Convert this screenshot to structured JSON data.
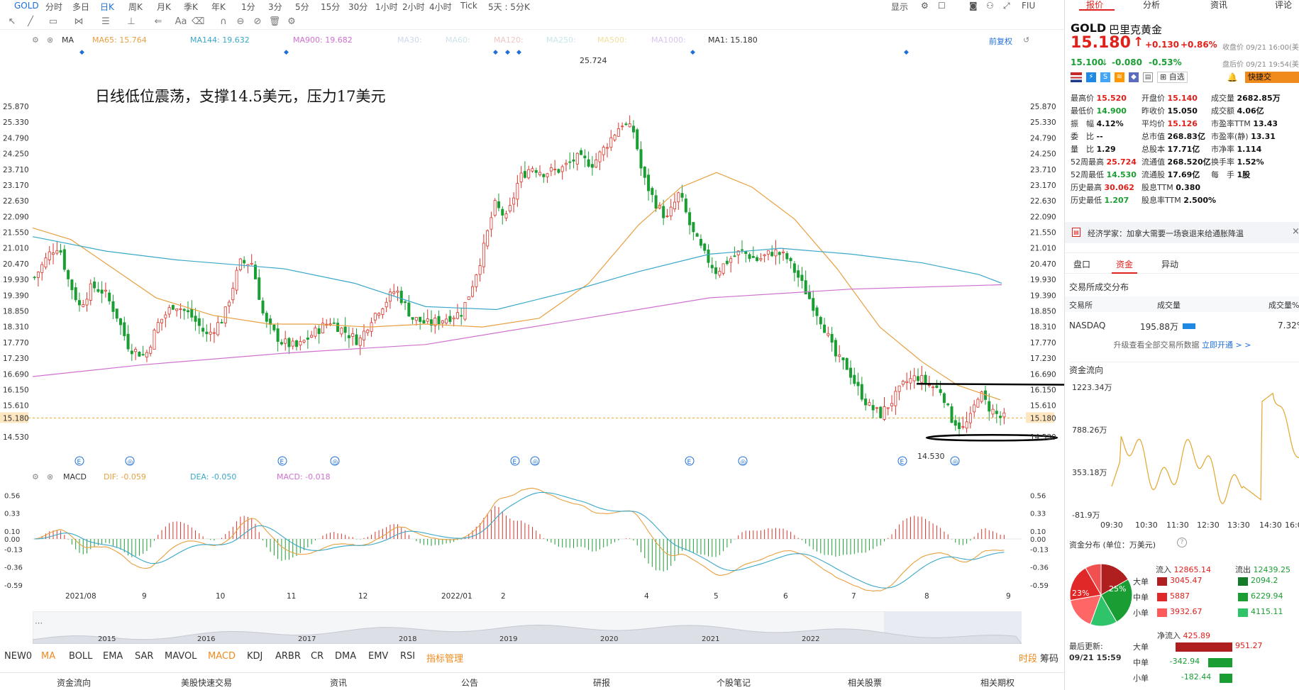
{
  "topbar": {
    "symbol": "GOLD",
    "periods": [
      "分时",
      "多日",
      "日K",
      "周K",
      "月K",
      "季K",
      "年K",
      "1分",
      "3分",
      "5分",
      "15分",
      "30分",
      "1小时",
      "2小时",
      "4小时",
      "Tick",
      "5天 : 5分K"
    ],
    "active_period": "日K",
    "display_label": "显示",
    "fu_label": "FIU"
  },
  "main_indicators": {
    "ma_label": "MA",
    "ma65": "MA65: 15.764",
    "ma144": "MA144: 19.632",
    "ma900": "MA900: 19.682",
    "ma30": "MA30:",
    "ma60": "MA60:",
    "ma120": "MA120:",
    "ma250": "MA250:",
    "ma500": "MA500:",
    "ma1000": "MA1000:",
    "ma1": "MA1: 15.180",
    "adjust": "前复权",
    "colors": {
      "ma65": "#e8a040",
      "ma144": "#3aa8c8",
      "ma900": "#d070d0",
      "ma1": "#333333"
    }
  },
  "annotation": "日线低位震荡，支撑14.5美元，压力17美元",
  "price_axis": [
    "25.870",
    "25.330",
    "24.790",
    "24.250",
    "23.710",
    "23.170",
    "22.630",
    "22.090",
    "21.550",
    "21.010",
    "20.470",
    "19.930",
    "19.390",
    "18.850",
    "18.310",
    "17.770",
    "17.230",
    "16.690",
    "16.150",
    "15.610",
    "15.180",
    "14.530"
  ],
  "current_price_tag": "15.180",
  "high_label": "25.724",
  "low_label": "14.530",
  "macd": {
    "label": "MACD",
    "dif": "DIF: -0.059",
    "dea": "DEA: -0.050",
    "macd": "MACD: -0.018",
    "axis": [
      "0.56",
      "0.33",
      "0.10",
      "0.00",
      "-0.13",
      "-0.36",
      "-0.59"
    ]
  },
  "time_axis": [
    "2021/08",
    "9",
    "10",
    "11",
    "12",
    "2022/01",
    "2",
    "4",
    "5",
    "6",
    "7",
    "8",
    "9"
  ],
  "overview_years": [
    "2015",
    "2016",
    "2017",
    "2018",
    "2019",
    "2020",
    "2021",
    "2022"
  ],
  "indicator_tabs": [
    "NEW0",
    "MA",
    "BOLL",
    "EMA",
    "SAR",
    "MAVOL",
    "MACD",
    "KDJ",
    "ARBR",
    "CR",
    "DMA",
    "EMV",
    "RSI",
    "指标管理"
  ],
  "indicator_tabs_right": [
    "时段",
    "筹码"
  ],
  "bottom_nav": [
    "资金流向",
    "美股快速交易",
    "资讯",
    "公告",
    "研报",
    "个股笔记",
    "相关股票",
    "相关期权"
  ],
  "right": {
    "tabs": [
      "报价",
      "分析",
      "资讯",
      "评论"
    ],
    "symbol": "GOLD",
    "name": "巴里克黄金",
    "price": "15.180",
    "arrow": "↑",
    "change": "+0.130",
    "change_pct": "+0.86%",
    "close_time": "收盘价 09/21 16:00(美",
    "after_price": "15.100",
    "after_arrow": "↓",
    "after_change": "-0.080",
    "after_pct": "-0.53%",
    "after_time": "盘后价 09/21 19:54(美",
    "watch_label": "自选",
    "fast_trade": "快捷交",
    "quotes": [
      [
        {
          "k": "最高价",
          "v": "15.520",
          "c": "red"
        },
        {
          "k": "开盘价",
          "v": "15.140",
          "c": "red"
        },
        {
          "k": "成交量",
          "v": "2682.85万",
          "c": "dark"
        }
      ],
      [
        {
          "k": "最低价",
          "v": "14.900",
          "c": "green"
        },
        {
          "k": "昨收价",
          "v": "15.050",
          "c": "dark"
        },
        {
          "k": "成交额",
          "v": "4.06亿",
          "c": "dark"
        }
      ],
      [
        {
          "k": "振　幅",
          "v": "4.12%",
          "c": "dark"
        },
        {
          "k": "平均价",
          "v": "15.126",
          "c": "red"
        },
        {
          "k": "市盈率TTM",
          "v": "13.43",
          "c": "dark"
        }
      ],
      [
        {
          "k": "委　比",
          "v": "--",
          "c": "dark"
        },
        {
          "k": "总市值",
          "v": "268.83亿",
          "c": "dark"
        },
        {
          "k": "市盈率(静)",
          "v": "13.31",
          "c": "dark"
        }
      ],
      [
        {
          "k": "量　比",
          "v": "1.29",
          "c": "dark"
        },
        {
          "k": "总股本",
          "v": "17.71亿",
          "c": "dark"
        },
        {
          "k": "市净率",
          "v": "1.114",
          "c": "dark"
        }
      ],
      [
        {
          "k": "52周最高",
          "v": "25.724",
          "c": "red"
        },
        {
          "k": "流通值",
          "v": "268.520亿",
          "c": "dark"
        },
        {
          "k": "换手率",
          "v": "1.52%",
          "c": "dark"
        }
      ],
      [
        {
          "k": "52周最低",
          "v": "14.530",
          "c": "green"
        },
        {
          "k": "流通股",
          "v": "17.69亿",
          "c": "dark"
        },
        {
          "k": "每　手",
          "v": "1股",
          "c": "dark"
        }
      ],
      [
        {
          "k": "历史最高",
          "v": "30.062",
          "c": "red"
        },
        {
          "k": "股息TTM",
          "v": "0.380",
          "c": "dark"
        },
        {
          "k": "",
          "v": "",
          "c": "dark"
        }
      ],
      [
        {
          "k": "历史最低",
          "v": "1.207",
          "c": "green"
        },
        {
          "k": "股息率TTM",
          "v": "2.500%",
          "c": "dark"
        },
        {
          "k": "",
          "v": "",
          "c": "dark"
        }
      ]
    ],
    "news": "经济学家：加拿大需要一场衰退来给通胀降温",
    "sub_tabs": [
      "盘口",
      "资金",
      "异动"
    ],
    "active_sub_tab": "资金",
    "exchange_title": "交易所成交分布",
    "exchange_headers": [
      "交易所",
      "成交量",
      "成交量%"
    ],
    "exchange_row": {
      "name": "NASDAQ",
      "volume": "195.88万",
      "pct": "7.32%"
    },
    "upgrade_text": "升级查看全部交易所数据",
    "upgrade_link": "立即开通 > >",
    "fund_flow_title": "资金流向",
    "fund_axis": [
      "1223.34万",
      "788.26万",
      "353.18万",
      "-81.9万"
    ],
    "fund_times": [
      "09:30",
      "10:30",
      "11:30",
      "12:30",
      "13:30",
      "14:30",
      "16:0"
    ],
    "dist_title": "资金分布 (单位：万美元)",
    "inflow_label": "流入",
    "inflow": "12865.14",
    "outflow_label": "流出",
    "outflow": "12439.25",
    "pie_left": "23%",
    "pie_right": "25%",
    "dist_rows": [
      {
        "label": "大单",
        "in": "3045.47",
        "out": "2094.2"
      },
      {
        "label": "中单",
        "in": "5887",
        "out": "6229.94"
      },
      {
        "label": "小单",
        "in": "3932.67",
        "out": "4115.11"
      }
    ],
    "net_label": "净流入",
    "net": "425.89",
    "update_label": "最后更新:",
    "update_time": "09/21 15:59",
    "net_rows": [
      {
        "label": "大单",
        "v": "951.27",
        "dir": 1
      },
      {
        "label": "中单",
        "v": "-342.94",
        "dir": -1
      },
      {
        "label": "小单",
        "v": "-182.44",
        "dir": -1
      }
    ]
  }
}
